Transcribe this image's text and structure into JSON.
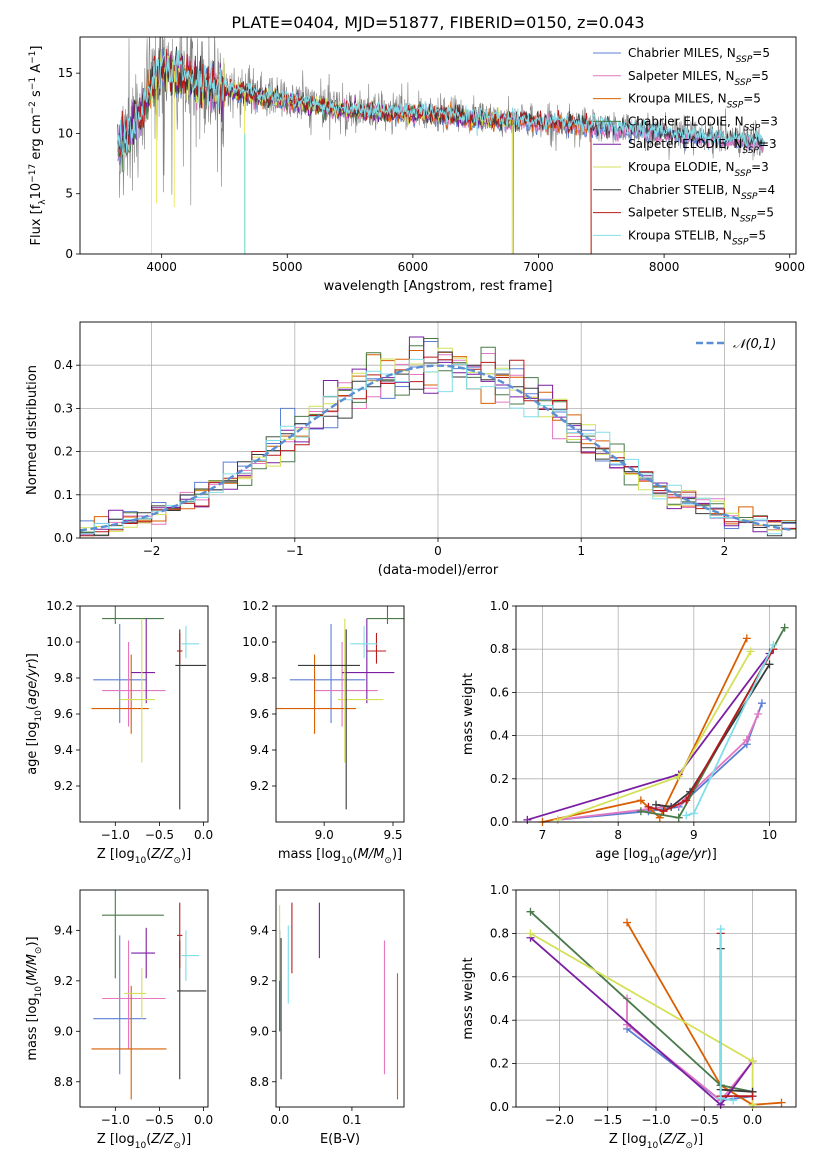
{
  "figure_title": "PLATE=0404, MJD=51877, FIBERID=0150, z=0.043",
  "colors": {
    "Chabrier MILES": "#5b7fd4",
    "Salpeter MILES": "#e377c2",
    "Kroupa MILES": "#d95f02",
    "Chabrier ELODIE": "#4a7a4a",
    "Salpeter ELODIE": "#7b1fa2",
    "Kroupa ELODIE": "#d4e157",
    "Chabrier STELIB": "#3a3a3a",
    "Salpeter STELIB": "#b71c1c",
    "Kroupa STELIB": "#80deea",
    "data": "#808080",
    "normal": "#5b8fd4"
  },
  "chart_data": [
    {
      "id": "spectrum",
      "type": "line",
      "xlabel": "wavelength [Angstrom, rest frame]",
      "ylabel": "Flux [f_λ 10^-17 erg cm^-2 s^-1 A^-1]",
      "xlim": [
        3350,
        9050
      ],
      "ylim": [
        0,
        18
      ],
      "xticks": [
        4000,
        5000,
        6000,
        7000,
        8000,
        9000
      ],
      "yticks": [
        0,
        5,
        10,
        15
      ],
      "legend_position": "top-right",
      "legend": [
        {
          "name": "Chabrier MILES",
          "nssp": "5"
        },
        {
          "name": "Salpeter MILES",
          "nssp": "5"
        },
        {
          "name": "Kroupa MILES",
          "nssp": "5"
        },
        {
          "name": "Chabrier ELODIE",
          "nssp": "3"
        },
        {
          "name": "Salpeter ELODIE",
          "nssp": "3"
        },
        {
          "name": "Kroupa ELODIE",
          "nssp": "3"
        },
        {
          "name": "Chabrier STELIB",
          "nssp": "4"
        },
        {
          "name": "Salpeter STELIB",
          "nssp": "5"
        },
        {
          "name": "Kroupa STELIB",
          "nssp": "5"
        }
      ],
      "approx_continuum": {
        "x": [
          3650,
          3800,
          3900,
          4000,
          4100,
          4200,
          4300,
          4500,
          4700,
          5000,
          5300,
          5600,
          6000,
          6300,
          6600,
          7000,
          7300,
          7600,
          8000,
          8400,
          8800
        ],
        "y": [
          9.0,
          11.0,
          13.5,
          15.5,
          15.2,
          14.8,
          14.0,
          13.8,
          13.3,
          12.8,
          12.2,
          11.9,
          11.7,
          11.5,
          11.3,
          11.0,
          10.8,
          10.5,
          10.1,
          9.7,
          9.3
        ]
      },
      "model_ranges": [
        {
          "series": "Chabrier MILES",
          "x": [
            3650,
            8800
          ]
        },
        {
          "series": "Salpeter MILES",
          "x": [
            3650,
            8800
          ]
        },
        {
          "series": "Kroupa MILES",
          "x": [
            3650,
            7420
          ]
        },
        {
          "series": "Chabrier ELODIE",
          "x": [
            3650,
            6800
          ]
        },
        {
          "series": "Salpeter ELODIE",
          "x": [
            3650,
            6800
          ]
        },
        {
          "series": "Kroupa ELODIE",
          "x": [
            3900,
            6800
          ]
        },
        {
          "series": "Chabrier STELIB",
          "x": [
            3650,
            8800
          ]
        },
        {
          "series": "Salpeter STELIB",
          "x": [
            3650,
            7420
          ]
        },
        {
          "series": "Kroupa STELIB",
          "x": [
            3650,
            8800
          ]
        }
      ]
    },
    {
      "id": "residuals",
      "type": "bar",
      "xlabel": "(data-model)/error",
      "ylabel": "Normed distribution",
      "xlim": [
        -2.5,
        2.5
      ],
      "ylim": [
        0,
        0.5
      ],
      "xticks": [
        -2,
        -1,
        0,
        1,
        2
      ],
      "yticks": [
        0.0,
        0.1,
        0.2,
        0.3,
        0.4
      ],
      "grid": true,
      "legend_position": "top-right",
      "legend": "𝒩(0,1)",
      "bin_width": 0.1,
      "bin_edges_start": -2.5,
      "gaussian": {
        "mean": 0,
        "sigma": 1
      }
    },
    {
      "id": "age-Z",
      "type": "scatter",
      "xlabel": "Z [log10(Z/Z⊙)]",
      "ylabel": "age [log10(age/yr)]",
      "xlim": [
        -1.4,
        0.05
      ],
      "ylim": [
        9.0,
        10.2
      ],
      "xticks": [
        -1.0,
        -0.5,
        0.0
      ],
      "yticks": [
        9.2,
        9.4,
        9.6,
        9.8,
        10.0,
        10.2
      ],
      "points": [
        {
          "series": "Chabrier MILES",
          "x": -0.95,
          "xerr": [
            0.3,
            0.3
          ],
          "y": 9.79,
          "yerr": [
            0.24,
            0.31
          ]
        },
        {
          "series": "Salpeter MILES",
          "x": -0.85,
          "xerr": [
            0.3,
            0.42
          ],
          "y": 9.73,
          "yerr": [
            0.2,
            0.27
          ]
        },
        {
          "series": "Kroupa MILES",
          "x": -0.82,
          "xerr": [
            0.45,
            0.2
          ],
          "y": 9.63,
          "yerr": [
            0.14,
            0.3
          ]
        },
        {
          "series": "Chabrier ELODIE",
          "x": -1.0,
          "xerr": [
            0.15,
            0.55
          ],
          "y": 10.13,
          "yerr": [
            0.03,
            0.6
          ]
        },
        {
          "series": "Salpeter ELODIE",
          "x": -0.65,
          "xerr": [
            0.17,
            0.1
          ],
          "y": 9.83,
          "yerr": [
            0.17,
            0.3
          ]
        },
        {
          "series": "Kroupa ELODIE",
          "x": -0.7,
          "xerr": [
            0.25,
            0.15
          ],
          "y": 9.68,
          "yerr": [
            0.35,
            0.45
          ]
        },
        {
          "series": "Chabrier STELIB",
          "x": -0.27,
          "xerr": [
            0.05,
            0.3
          ],
          "y": 9.87,
          "yerr": [
            0.8,
            0.2
          ]
        },
        {
          "series": "Salpeter STELIB",
          "x": -0.27,
          "xerr": [
            0.03,
            0.03
          ],
          "y": 9.95,
          "yerr": [
            0.07,
            0.1
          ]
        },
        {
          "series": "Kroupa STELIB",
          "x": -0.2,
          "xerr": [
            0.05,
            0.15
          ],
          "y": 9.99,
          "yerr": [
            0.08,
            0.1
          ]
        }
      ]
    },
    {
      "id": "age-mass",
      "type": "scatter",
      "xlabel": "mass [log10(M/M⊙)]",
      "ylabel": "",
      "xlim": [
        8.65,
        9.58
      ],
      "ylim": [
        9.0,
        10.2
      ],
      "xticks": [
        9.0,
        9.5
      ],
      "yticks": [
        9.2,
        9.4,
        9.6,
        9.8,
        10.0,
        10.2
      ],
      "points": [
        {
          "series": "Chabrier MILES",
          "x": 9.05,
          "xerr": [
            0.3,
            0.25
          ],
          "y": 9.79,
          "yerr": [
            0.24,
            0.31
          ]
        },
        {
          "series": "Salpeter MILES",
          "x": 9.13,
          "xerr": [
            0.2,
            0.26
          ],
          "y": 9.73,
          "yerr": [
            0.2,
            0.27
          ]
        },
        {
          "series": "Kroupa MILES",
          "x": 8.93,
          "xerr": [
            0.3,
            0.3
          ],
          "y": 9.63,
          "yerr": [
            0.14,
            0.3
          ]
        },
        {
          "series": "Chabrier ELODIE",
          "x": 9.46,
          "xerr": [
            0.15,
            0.14
          ],
          "y": 10.13,
          "yerr": [
            0.03,
            0.6
          ]
        },
        {
          "series": "Salpeter ELODIE",
          "x": 9.31,
          "xerr": [
            0.18,
            0.2
          ],
          "y": 9.83,
          "yerr": [
            0.17,
            0.3
          ]
        },
        {
          "series": "Kroupa ELODIE",
          "x": 9.15,
          "xerr": [
            0.05,
            0.28
          ],
          "y": 9.68,
          "yerr": [
            0.35,
            0.45
          ]
        },
        {
          "series": "Chabrier STELIB",
          "x": 9.16,
          "xerr": [
            0.35,
            0.1
          ],
          "y": 9.87,
          "yerr": [
            0.8,
            0.2
          ]
        },
        {
          "series": "Salpeter STELIB",
          "x": 9.38,
          "xerr": [
            0.07,
            0.07
          ],
          "y": 9.95,
          "yerr": [
            0.07,
            0.1
          ]
        },
        {
          "series": "Kroupa STELIB",
          "x": 9.29,
          "xerr": [
            0.1,
            0.1
          ],
          "y": 9.99,
          "yerr": [
            0.08,
            0.1
          ]
        }
      ]
    },
    {
      "id": "weight-age",
      "type": "line",
      "xlabel": "age [log10(age/yr)]",
      "ylabel": "mass weight",
      "xlim": [
        6.65,
        10.35
      ],
      "ylim": [
        0,
        1.0
      ],
      "xticks": [
        7,
        8,
        9,
        10
      ],
      "yticks": [
        0.0,
        0.2,
        0.4,
        0.6,
        0.8,
        1.0
      ],
      "grid": true,
      "series": [
        {
          "name": "Chabrier MILES",
          "x": [
            7.2,
            8.4,
            8.8,
            9.7,
            9.9
          ],
          "y": [
            0.01,
            0.05,
            0.07,
            0.36,
            0.55
          ]
        },
        {
          "name": "Salpeter MILES",
          "x": [
            7.2,
            8.4,
            8.8,
            9.7,
            9.85
          ],
          "y": [
            0.01,
            0.06,
            0.08,
            0.38,
            0.5
          ]
        },
        {
          "name": "Kroupa MILES",
          "x": [
            7.0,
            8.3,
            8.55,
            9.7
          ],
          "y": [
            0.0,
            0.1,
            0.02,
            0.85
          ]
        },
        {
          "name": "Chabrier ELODIE",
          "x": [
            8.3,
            8.8,
            10.2
          ],
          "y": [
            0.05,
            0.02,
            0.9
          ]
        },
        {
          "name": "Salpeter ELODIE",
          "x": [
            6.8,
            8.8,
            10.0
          ],
          "y": [
            0.01,
            0.22,
            0.78
          ]
        },
        {
          "name": "Kroupa ELODIE",
          "x": [
            7.2,
            8.8,
            9.75
          ],
          "y": [
            0.01,
            0.21,
            0.79
          ]
        },
        {
          "name": "Chabrier STELIB",
          "x": [
            8.5,
            8.7,
            8.95,
            10.0
          ],
          "y": [
            0.08,
            0.07,
            0.14,
            0.73
          ]
        },
        {
          "name": "Salpeter STELIB",
          "x": [
            8.4,
            8.6,
            8.9,
            10.05
          ],
          "y": [
            0.07,
            0.05,
            0.1,
            0.8
          ]
        },
        {
          "name": "Kroupa STELIB",
          "x": [
            8.9,
            9.0,
            10.05
          ],
          "y": [
            0.03,
            0.04,
            0.82
          ]
        }
      ]
    },
    {
      "id": "mass-Z",
      "type": "scatter",
      "xlabel": "Z [log10(Z/Z⊙)]",
      "ylabel": "mass [log10(M/M⊙)]",
      "xlim": [
        -1.4,
        0.05
      ],
      "ylim": [
        8.7,
        9.56
      ],
      "xticks": [
        -1.0,
        -0.5,
        0.0
      ],
      "yticks": [
        8.8,
        9.0,
        9.2,
        9.4
      ],
      "points": [
        {
          "series": "Chabrier MILES",
          "x": -0.95,
          "xerr": [
            0.3,
            0.3
          ],
          "y": 9.05,
          "yerr": [
            0.22,
            0.33
          ]
        },
        {
          "series": "Salpeter MILES",
          "x": -0.85,
          "xerr": [
            0.3,
            0.42
          ],
          "y": 9.13,
          "yerr": [
            0.2,
            0.23
          ]
        },
        {
          "series": "Kroupa MILES",
          "x": -0.82,
          "xerr": [
            0.45,
            0.4
          ],
          "y": 8.93,
          "yerr": [
            0.2,
            0.25
          ]
        },
        {
          "series": "Chabrier ELODIE",
          "x": -1.0,
          "xerr": [
            0.15,
            0.55
          ],
          "y": 9.46,
          "yerr": [
            0.25,
            0.1
          ]
        },
        {
          "series": "Salpeter ELODIE",
          "x": -0.65,
          "xerr": [
            0.17,
            0.1
          ],
          "y": 9.31,
          "yerr": [
            0.1,
            0.1
          ]
        },
        {
          "series": "Kroupa ELODIE",
          "x": -0.7,
          "xerr": [
            0.2,
            0.05
          ],
          "y": 9.15,
          "yerr": [
            0.1,
            0.1
          ]
        },
        {
          "series": "Chabrier STELIB",
          "x": -0.27,
          "xerr": [
            0.03,
            0.3
          ],
          "y": 9.16,
          "yerr": [
            0.35,
            0.2
          ]
        },
        {
          "series": "Salpeter STELIB",
          "x": -0.27,
          "xerr": [
            0.03,
            0.03
          ],
          "y": 9.38,
          "yerr": [
            0.13,
            0.13
          ]
        },
        {
          "series": "Kroupa STELIB",
          "x": -0.2,
          "xerr": [
            0.05,
            0.15
          ],
          "y": 9.3,
          "yerr": [
            0.1,
            0.1
          ]
        }
      ]
    },
    {
      "id": "mass-EBV",
      "type": "scatter",
      "xlabel": "E(B-V)",
      "ylabel": "",
      "xlim": [
        -0.005,
        0.172
      ],
      "ylim": [
        8.7,
        9.56
      ],
      "xticks": [
        0.0,
        0.1
      ],
      "yticks": [
        8.8,
        9.0,
        9.2,
        9.4
      ],
      "points": [
        {
          "series": "Chabrier MILES",
          "x": 0.0,
          "y": 9.2,
          "yerr": [
            0.2,
            0.2
          ]
        },
        {
          "series": "Salpeter MILES",
          "x": 0.145,
          "y": 9.15,
          "yerr": [
            0.32,
            0.21
          ]
        },
        {
          "series": "Kroupa MILES",
          "x": 0.163,
          "y": 8.98,
          "yerr": [
            0.25,
            0.25
          ]
        },
        {
          "series": "Chabrier ELODIE",
          "x": 0.0,
          "y": 9.2,
          "yerr": [
            0.2,
            0.2
          ]
        },
        {
          "series": "Salpeter ELODIE",
          "x": 0.055,
          "y": 9.4,
          "yerr": [
            0.11,
            0.11
          ]
        },
        {
          "series": "Kroupa ELODIE",
          "x": 0.0,
          "y": 9.35,
          "yerr": [
            0.15,
            0.15
          ]
        },
        {
          "series": "Chabrier STELIB",
          "x": 0.002,
          "y": 9.1,
          "yerr": [
            0.29,
            0.27
          ]
        },
        {
          "series": "Salpeter STELIB",
          "x": 0.017,
          "y": 9.37,
          "yerr": [
            0.14,
            0.14
          ]
        },
        {
          "series": "Kroupa STELIB",
          "x": 0.012,
          "y": 9.27,
          "yerr": [
            0.16,
            0.15
          ]
        }
      ]
    },
    {
      "id": "weight-Z",
      "type": "line",
      "xlabel": "Z [log10(Z/Z⊙)]",
      "ylabel": "mass weight",
      "xlim": [
        -2.45,
        0.45
      ],
      "ylim": [
        0,
        1.0
      ],
      "xticks": [
        -2.0,
        -1.5,
        -1.0,
        -0.5,
        0.0
      ],
      "yticks": [
        0.0,
        0.2,
        0.4,
        0.6,
        0.8,
        1.0
      ],
      "grid": true,
      "series": [
        {
          "name": "Chabrier MILES",
          "x": [
            -1.3,
            -0.33,
            0.0,
            0.0
          ],
          "y": [
            0.36,
            0.03,
            0.05,
            0.05
          ]
        },
        {
          "name": "Salpeter MILES",
          "x": [
            -1.3,
            -1.3,
            -0.33,
            0.0
          ],
          "y": [
            0.5,
            0.38,
            0.03,
            0.21
          ]
        },
        {
          "name": "Kroupa MILES",
          "x": [
            -1.3,
            -0.33,
            0.0,
            0.3
          ],
          "y": [
            0.85,
            0.1,
            0.01,
            0.02
          ]
        },
        {
          "name": "Chabrier ELODIE",
          "x": [
            -2.3,
            -0.33,
            0.0
          ],
          "y": [
            0.9,
            0.1,
            0.07
          ]
        },
        {
          "name": "Salpeter ELODIE",
          "x": [
            -2.3,
            -0.33,
            0.0
          ],
          "y": [
            0.78,
            0.01,
            0.21
          ]
        },
        {
          "name": "Kroupa ELODIE",
          "x": [
            -2.3,
            0.0,
            0.0
          ],
          "y": [
            0.8,
            0.21,
            0.01
          ]
        },
        {
          "name": "Chabrier STELIB",
          "x": [
            -0.33,
            -0.33,
            0.0
          ],
          "y": [
            0.73,
            0.08,
            0.07
          ]
        },
        {
          "name": "Salpeter STELIB",
          "x": [
            -0.33,
            -0.33,
            0.0
          ],
          "y": [
            0.8,
            0.05,
            0.05
          ]
        },
        {
          "name": "Kroupa STELIB",
          "x": [
            -0.33,
            -0.33,
            -0.2
          ],
          "y": [
            0.82,
            0.04,
            0.03
          ]
        }
      ]
    }
  ]
}
